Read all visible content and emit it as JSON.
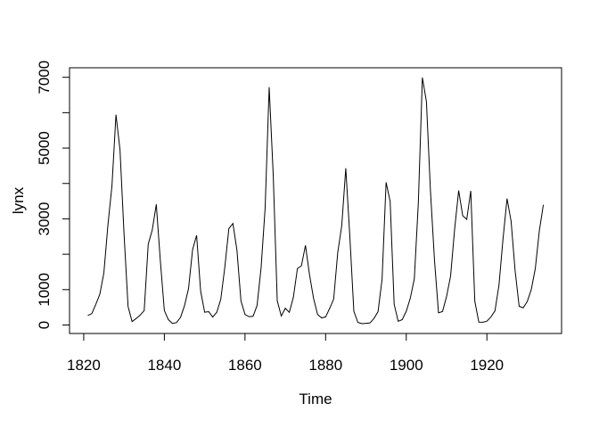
{
  "figure": {
    "background": "#ffffff",
    "line_color": "#000000",
    "axis_color": "#000000"
  },
  "chart_data": {
    "type": "line",
    "title": "",
    "xlabel": "Time",
    "ylabel": "lynx",
    "x_start": 1821,
    "x_end": 1934,
    "x_step": 1,
    "values": [
      269,
      321,
      585,
      871,
      1475,
      2821,
      3928,
      5943,
      4950,
      2577,
      523,
      98,
      184,
      279,
      409,
      2285,
      2685,
      3409,
      1824,
      409,
      151,
      45,
      68,
      213,
      546,
      1033,
      2129,
      2536,
      957,
      361,
      377,
      225,
      360,
      731,
      1638,
      2725,
      2871,
      2119,
      684,
      299,
      236,
      245,
      552,
      1623,
      3311,
      6721,
      4254,
      687,
      255,
      473,
      358,
      784,
      1594,
      1676,
      2251,
      1426,
      756,
      299,
      201,
      229,
      469,
      736,
      2042,
      2811,
      4431,
      2511,
      389,
      73,
      39,
      49,
      59,
      188,
      377,
      1292,
      4031,
      3495,
      587,
      105,
      153,
      387,
      758,
      1307,
      3465,
      6991,
      6313,
      3794,
      1836,
      345,
      382,
      808,
      1388,
      2713,
      3800,
      3091,
      2985,
      3790,
      674,
      81,
      80,
      108,
      229,
      399,
      1132,
      2432,
      3574,
      2935,
      1537,
      529,
      485,
      662,
      1000,
      1590,
      2657,
      3396
    ],
    "xlim": [
      1816.48,
      1938.52
    ],
    "ylim": [
      -239.08,
      7269.08
    ],
    "x_ticks": [
      1820,
      1840,
      1860,
      1880,
      1900,
      1920
    ],
    "y_ticks": [
      0,
      1000,
      2000,
      3000,
      4000,
      5000,
      6000,
      7000
    ],
    "y_tick_labeled": [
      0,
      1000,
      3000,
      5000,
      7000
    ],
    "grid": false,
    "legend": null
  }
}
